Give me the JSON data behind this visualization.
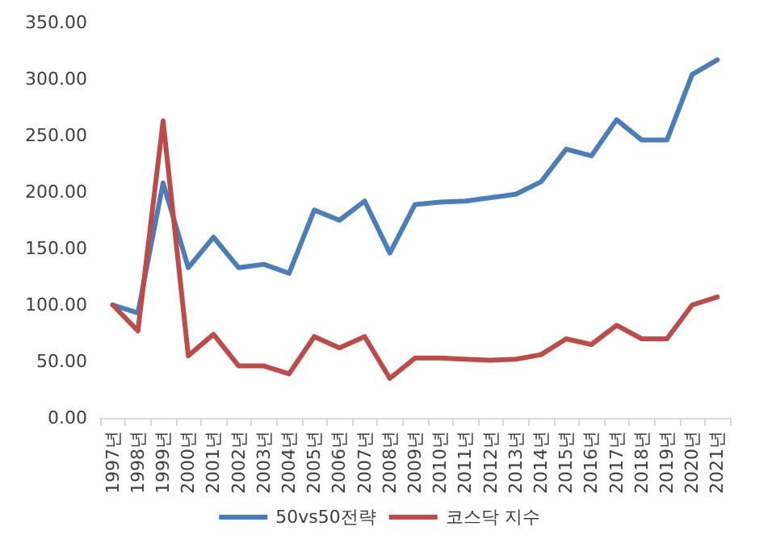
{
  "chart_data": {
    "type": "line",
    "categories": [
      "1997년",
      "1998년",
      "1999년",
      "2000년",
      "2001년",
      "2002년",
      "2003년",
      "2004년",
      "2005년",
      "2006년",
      "2007년",
      "2008년",
      "2009년",
      "2010년",
      "2011년",
      "2012년",
      "2013년",
      "2014년",
      "2015년",
      "2016년",
      "2017년",
      "2018년",
      "2019년",
      "2020년",
      "2021년"
    ],
    "series": [
      {
        "name": "50vs50전략",
        "color": "#4a7ebb",
        "values": [
          100,
          93,
          208,
          133,
          160,
          133,
          136,
          128,
          184,
          175,
          192,
          146,
          189,
          191,
          192,
          195,
          198,
          209,
          238,
          232,
          264,
          246,
          246,
          304,
          317
        ]
      },
      {
        "name": "코스닥 지수",
        "color": "#be4b48",
        "values": [
          100,
          77,
          263,
          55,
          74,
          46,
          46,
          39,
          72,
          62,
          72,
          35,
          53,
          53,
          52,
          51,
          52,
          56,
          70,
          65,
          82,
          70,
          70,
          100,
          107
        ]
      }
    ],
    "ylim": [
      0,
      350
    ],
    "yticks": [
      {
        "value": 0,
        "label": "0.00"
      },
      {
        "value": 50,
        "label": "50.00"
      },
      {
        "value": 100,
        "label": "100.00"
      },
      {
        "value": 150,
        "label": "150.00"
      },
      {
        "value": 200,
        "label": "200.00"
      },
      {
        "value": 250,
        "label": "250.00"
      },
      {
        "value": 300,
        "label": "300.00"
      },
      {
        "value": 350,
        "label": "350.00"
      }
    ],
    "grid": false,
    "legend": "bottom",
    "marker": "none",
    "line_style": "solid"
  }
}
